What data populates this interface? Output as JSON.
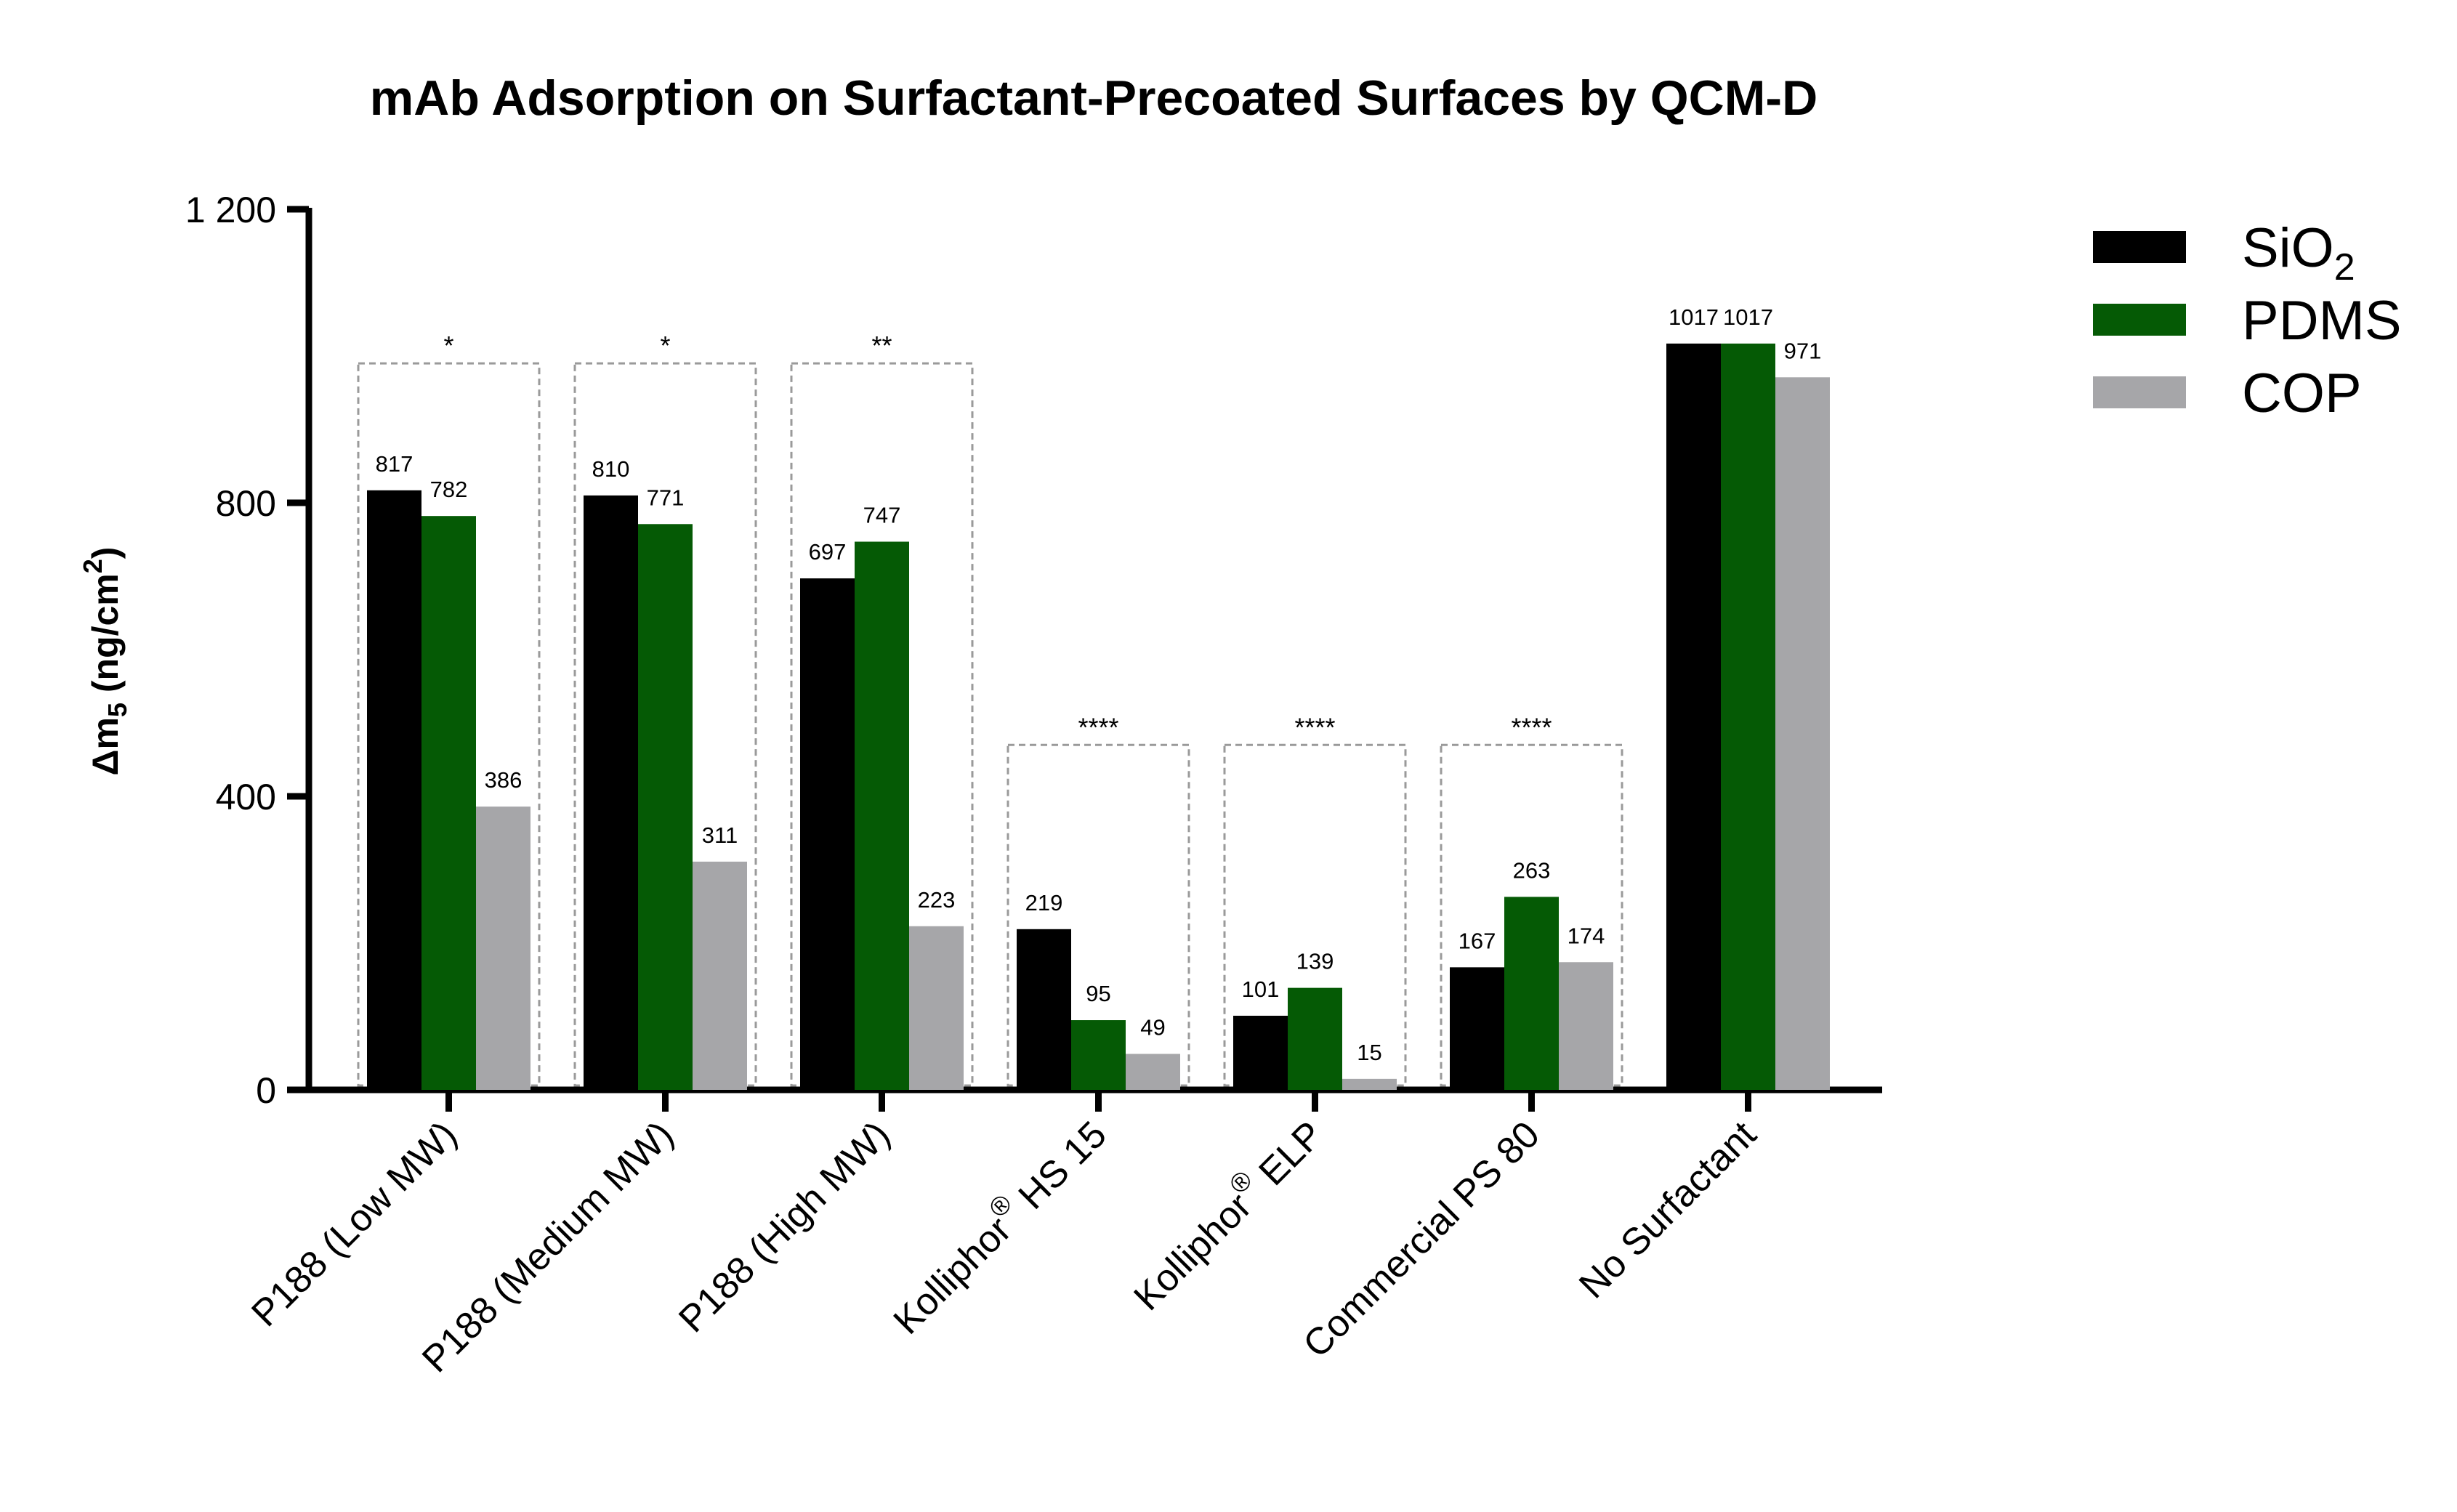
{
  "chart_data": {
    "type": "bar",
    "title": "mAb Adsorption on Surfactant-Precoated Surfaces by QCM-D",
    "ylabel": {
      "base": "Δm",
      "sub": "5",
      "text": " (ng/cm",
      "sup": "2",
      "close": ")"
    },
    "xlabel": "",
    "ylim": [
      0,
      1200
    ],
    "yticks": [
      0,
      400,
      800,
      1200
    ],
    "ytick_labels": [
      "0",
      "400",
      "800",
      "1 200"
    ],
    "categories": [
      {
        "text": "P188 (Low MW)"
      },
      {
        "text": "P188 (Medium MW)"
      },
      {
        "text": "P188 (High MW)"
      },
      {
        "pre": "Kolliphor",
        "sup": "®",
        "post": " HS 15"
      },
      {
        "pre": "Kolliphor",
        "sup": "®",
        "post": " ELP"
      },
      {
        "text": "Commercial PS 80"
      },
      {
        "text": "No Surfactant"
      }
    ],
    "series": [
      {
        "name": "SiO",
        "name_sub": "2",
        "color": "#000000",
        "values": [
          817,
          810,
          697,
          219,
          101,
          167,
          1017
        ],
        "labels": [
          "817",
          "810",
          "697",
          "219",
          "101",
          "167",
          "1017"
        ]
      },
      {
        "name": "PDMS",
        "name_sub": "",
        "color": "#055a05",
        "values": [
          782,
          771,
          747,
          95,
          139,
          263,
          1017
        ],
        "labels": [
          "782",
          "771",
          "747",
          "95",
          "139",
          "263",
          "1017"
        ]
      },
      {
        "name": "COP",
        "name_sub": "",
        "color": "#a6a6a9",
        "values": [
          386,
          311,
          223,
          49,
          15,
          174,
          971
        ],
        "labels": [
          "386",
          "311",
          "223",
          "49",
          "15",
          "174",
          "971"
        ]
      }
    ],
    "significance": [
      "*",
      "*",
      "**",
      "****",
      "****",
      "****",
      ""
    ],
    "legend_position": "top-right",
    "grid": false
  }
}
